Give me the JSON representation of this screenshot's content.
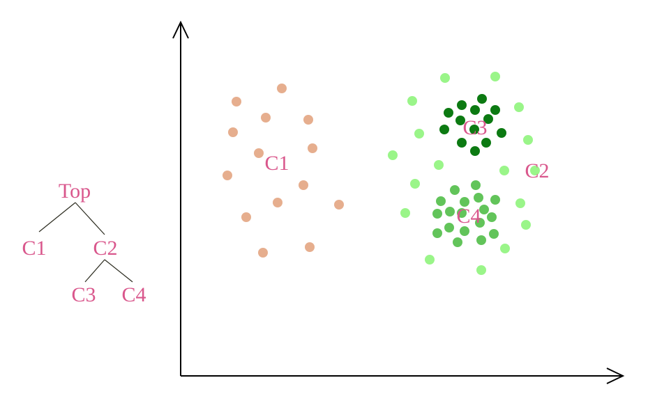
{
  "colors": {
    "label": "#d9578c",
    "axis": "#000000",
    "tree_line": "#2b2b1f",
    "C1": "#e6ae8e",
    "C2": "#9af589",
    "C3": "#0c7a12",
    "C4": "#62c45a"
  },
  "tree": {
    "root": "Top",
    "children": [
      {
        "label": "C1"
      },
      {
        "label": "C2",
        "children": [
          {
            "label": "C3"
          },
          {
            "label": "C4"
          }
        ]
      }
    ]
  },
  "clusters": {
    "C1": {
      "label": "C1",
      "point_count": 14
    },
    "C2": {
      "label": "C2",
      "point_count": 19
    },
    "C3": {
      "label": "C3",
      "point_count": 14
    },
    "C4": {
      "label": "C4",
      "point_count": 23
    }
  }
}
